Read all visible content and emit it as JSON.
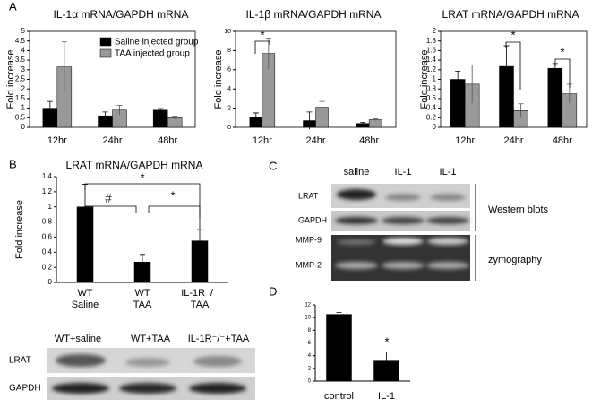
{
  "chart_data": [
    {
      "type": "bar",
      "panel": "A",
      "title": "IL-1α mRNA/GAPDH mRNA",
      "y_label": "Fold increase",
      "categories": [
        "12hr",
        "24hr",
        "48hr"
      ],
      "series": [
        {
          "name": "Saline injected group",
          "color": "#000000",
          "values": [
            1.0,
            0.6,
            0.9
          ],
          "errors": [
            0.35,
            0.2,
            0.08
          ]
        },
        {
          "name": "TAA injected group",
          "color": "#999999",
          "values": [
            3.15,
            0.9,
            0.5
          ],
          "errors": [
            1.3,
            0.25,
            0.08
          ]
        }
      ],
      "ylim": [
        0,
        5
      ],
      "yticks": [
        0,
        0.5,
        1,
        1.5,
        2,
        2.5,
        3,
        3.5,
        4,
        4.5,
        5
      ],
      "legend": "upper left"
    },
    {
      "type": "bar",
      "title": "IL-1β mRNA/GAPDH mRNA",
      "y_label": "Fold increase",
      "categories": [
        "12hr",
        "24hr",
        "48hr"
      ],
      "series": [
        {
          "color": "#000000",
          "values": [
            1.0,
            0.7,
            0.4
          ],
          "errors": [
            0.5,
            0.9,
            0.1
          ]
        },
        {
          "color": "#999999",
          "values": [
            7.7,
            2.1,
            0.8
          ],
          "errors": [
            1.6,
            0.6,
            0.1
          ]
        }
      ],
      "ylim": [
        0,
        10
      ],
      "yticks": [
        0,
        2,
        4,
        6,
        8,
        10
      ],
      "annotations": [
        "*"
      ]
    },
    {
      "type": "bar",
      "title": "LRAT mRNA/GAPDH mRNA",
      "y_label": "Fold increase",
      "categories": [
        "12hr",
        "24hr",
        "48hr"
      ],
      "series": [
        {
          "color": "#000000",
          "values": [
            1.0,
            1.27,
            1.23
          ],
          "errors": [
            0.17,
            0.43,
            0.1
          ]
        },
        {
          "color": "#999999",
          "values": [
            0.9,
            0.35,
            0.7
          ],
          "errors": [
            0.4,
            0.14,
            0.2
          ]
        }
      ],
      "ylim": [
        0,
        2
      ],
      "yticks": [
        0,
        0.2,
        0.4,
        0.6,
        0.8,
        1,
        1.2,
        1.4,
        1.6,
        1.8,
        2
      ],
      "annotations": [
        "*",
        "*"
      ]
    },
    {
      "type": "bar",
      "panel": "B",
      "title": "LRAT mRNA/GAPDH mRNA",
      "y_label": "Fold increase",
      "categories": [
        "WT\nSaline",
        "WT\nTAA",
        "IL-1R⁻/⁻\nTAA"
      ],
      "series": [
        {
          "color": "#000000",
          "values": [
            1.0,
            0.27,
            0.55
          ],
          "errors": [
            0.3,
            0.1,
            0.15
          ]
        }
      ],
      "ylim": [
        0,
        1.4
      ],
      "yticks": [
        0,
        0.2,
        0.4,
        0.6,
        0.8,
        1,
        1.2,
        1.4
      ],
      "annotations": [
        "#",
        "*",
        "*"
      ]
    },
    {
      "type": "bar",
      "panel": "D",
      "categories": [
        "control",
        "IL-1"
      ],
      "series": [
        {
          "color": "#000000",
          "values": [
            10.5,
            3.3
          ],
          "errors": [
            0.3,
            1.3
          ]
        }
      ],
      "ylim": [
        0,
        12
      ],
      "yticks": [
        0,
        2,
        4,
        6,
        8,
        10,
        12
      ],
      "annotations": [
        "*"
      ]
    }
  ],
  "blots": {
    "blot_b": {
      "lanes": [
        "WT+saline",
        "WT+TAA",
        "IL-1R⁻/⁻+TAA"
      ],
      "rows": [
        "LRAT",
        "GAPDH"
      ]
    },
    "blot_c": {
      "panel": "C",
      "lanes": [
        "saline",
        "IL-1",
        "IL-1"
      ],
      "rows": [
        "LRAT",
        "GAPDH",
        "MMP-9",
        "MMP-2"
      ],
      "groups": [
        "Western blots",
        "zymography"
      ]
    }
  }
}
